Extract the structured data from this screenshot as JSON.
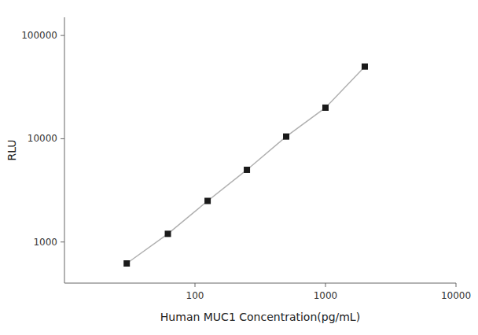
{
  "chart_data": {
    "type": "line",
    "x": [
      30,
      62,
      125,
      250,
      500,
      1000,
      2000
    ],
    "values": [
      620,
      1200,
      2500,
      5000,
      10500,
      20000,
      50000
    ],
    "xlabel": "Human MUC1 Concentration(pg/mL)",
    "ylabel": "RLU",
    "xlim": [
      10,
      10000
    ],
    "ylim": [
      400,
      150000
    ],
    "xticks": [
      100,
      1000,
      10000
    ],
    "yticks": [
      1000,
      10000,
      100000
    ],
    "log": true,
    "grid": false,
    "color": "#1a1a1a",
    "marker": "square"
  }
}
